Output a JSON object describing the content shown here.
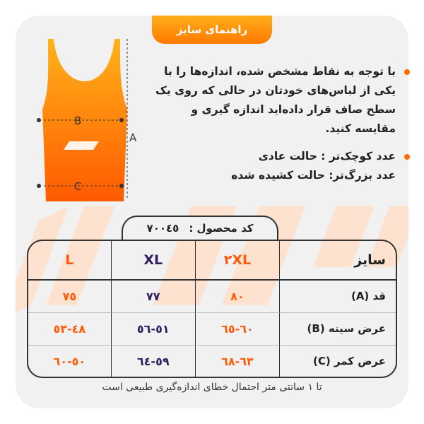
{
  "title": "راهنمای سایز",
  "instructions": [
    "با توجه به نقاط مشخص شده، اندازه‌ها را با یکی از لباس‌های خودتان در حالی که روی یک سطح صاف قرار داده‌اید اندازه گیری و مقایسه کنید.",
    "عدد کوچک‌تر : حالت عادی",
    "عدد بزرگ‌تر: حالت کشیده شده"
  ],
  "diagram": {
    "labels": {
      "a": "A",
      "b": "B",
      "c": "C"
    }
  },
  "product_code": {
    "label": "کد محصول :",
    "value": "٧٠٠٤٥"
  },
  "table": {
    "header": {
      "label": "سایز",
      "sizes": [
        "٢XL",
        "XL",
        "L"
      ]
    },
    "rows": [
      {
        "label": "قد (A)",
        "values": [
          "٨٠",
          "٧٧",
          "٧٥"
        ]
      },
      {
        "label": "عرض سینه (B)",
        "values": [
          "٦٠-٦٥",
          "٥١-٥٦",
          "٤٨-٥٣"
        ]
      },
      {
        "label": "عرض کمر (C)",
        "values": [
          "٦٣-٦٨",
          "٥٩-٦٤",
          "٥٠-٦٠"
        ]
      }
    ]
  },
  "footer": "تا ۱ سانتی متر احتمال خطای اندازه‌گیری طبیعی است",
  "colors": {
    "accent": "#ff6a00",
    "secondary": "#2e1f5e",
    "background": "#f1f1f1"
  }
}
